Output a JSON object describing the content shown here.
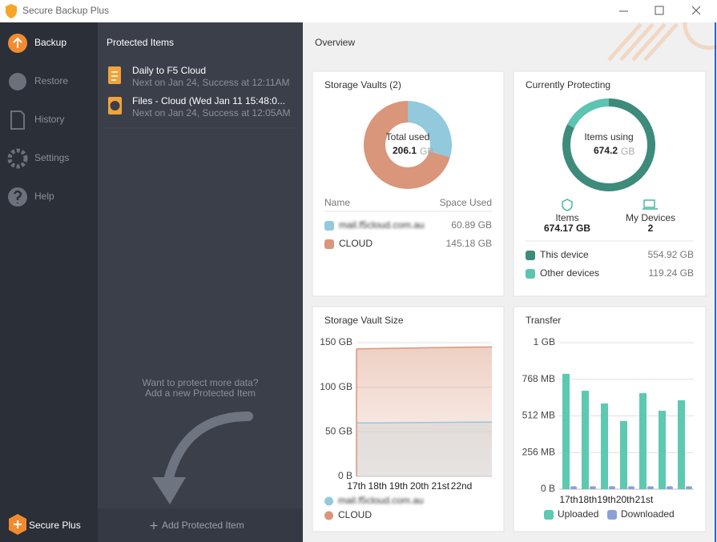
{
  "window": {
    "title": "Secure Backup Plus"
  },
  "sidebar": {
    "items": [
      "Backup",
      "Restore",
      "History",
      "Settings",
      "Help"
    ],
    "brand": "Secure Plus"
  },
  "protected": {
    "title": "Protected Items",
    "items": [
      {
        "name": "Daily to F5 Cloud",
        "status": "Next on Jan 24, Success at 12:11AM"
      },
      {
        "name": "Files - Cloud (Wed Jan 11 15:48:0...",
        "status": "Next on Jan 24, Success at 12:05AM"
      }
    ],
    "hint": [
      "Want to protect more data?",
      "Add a new Protected Item"
    ],
    "add": "Add Protected Item"
  },
  "overview": {
    "title": "Overview"
  },
  "chart_data": [
    {
      "type": "pie",
      "title": "Storage Vaults (2)",
      "center_label": "Total used",
      "center_value": 206.1,
      "center_unit": "GB",
      "columns": [
        "Name",
        "Space Used"
      ],
      "categories": [
        "mail.f5cloud.com.au",
        "CLOUD"
      ],
      "values": [
        60.89,
        145.18
      ],
      "value_labels": [
        "60.89 GB",
        "145.18 GB"
      ],
      "colors": [
        "#92c9dc",
        "#d9967a"
      ]
    },
    {
      "type": "pie",
      "title": "Currently Protecting",
      "center_label": "Items using",
      "center_value": 674.2,
      "center_unit": "GB",
      "stats": [
        {
          "label": "Items",
          "value": "674.17 GB"
        },
        {
          "label": "My Devices",
          "value": 2
        }
      ],
      "categories": [
        "This device",
        "Other devices"
      ],
      "values": [
        554.92,
        119.24
      ],
      "value_labels": [
        "554.92 GB",
        "119.24 GB"
      ],
      "colors": [
        "#3d8b7b",
        "#5cc4b0"
      ]
    },
    {
      "type": "area",
      "title": "Storage Vault Size",
      "categories": [
        "17th",
        "18th",
        "19th",
        "20th",
        "21st",
        "22nd"
      ],
      "ylim": [
        0,
        150
      ],
      "yticks": [
        {
          "value": 150,
          "label": "150 GB"
        },
        {
          "value": 100,
          "label": "100 GB"
        },
        {
          "value": 50,
          "label": "50 GB"
        },
        {
          "value": 0,
          "label": "0 B"
        }
      ],
      "grid": true,
      "series": [
        {
          "name": "mail.f5cloud.com.au",
          "color": "#92c9dc",
          "values": [
            60,
            60,
            60.3,
            60.5,
            60.7,
            60.89
          ]
        },
        {
          "name": "CLOUD",
          "color": "#d9967a",
          "values": [
            143,
            143.5,
            144,
            144.5,
            145,
            145.18
          ]
        }
      ]
    },
    {
      "type": "bar",
      "title": "Transfer",
      "categories": [
        "17th",
        "18th",
        "19th",
        "20th",
        "21st",
        null,
        null
      ],
      "ylim": [
        0,
        1024
      ],
      "yticks": [
        {
          "value": 1024,
          "label": "1 GB"
        },
        {
          "value": 768,
          "label": "768 MB"
        },
        {
          "value": 512,
          "label": "512 MB"
        },
        {
          "value": 256,
          "label": "256 MB"
        },
        {
          "value": 0,
          "label": "0 B"
        }
      ],
      "grid": true,
      "series": [
        {
          "name": "Uploaded",
          "color": "#5cc9b0",
          "values": [
            806,
            688,
            599,
            476,
            671,
            548,
            621
          ]
        },
        {
          "name": "Downloaded",
          "color": "#8c9fd8",
          "values": [
            20,
            20,
            20,
            20,
            20,
            20,
            20
          ]
        }
      ]
    }
  ]
}
